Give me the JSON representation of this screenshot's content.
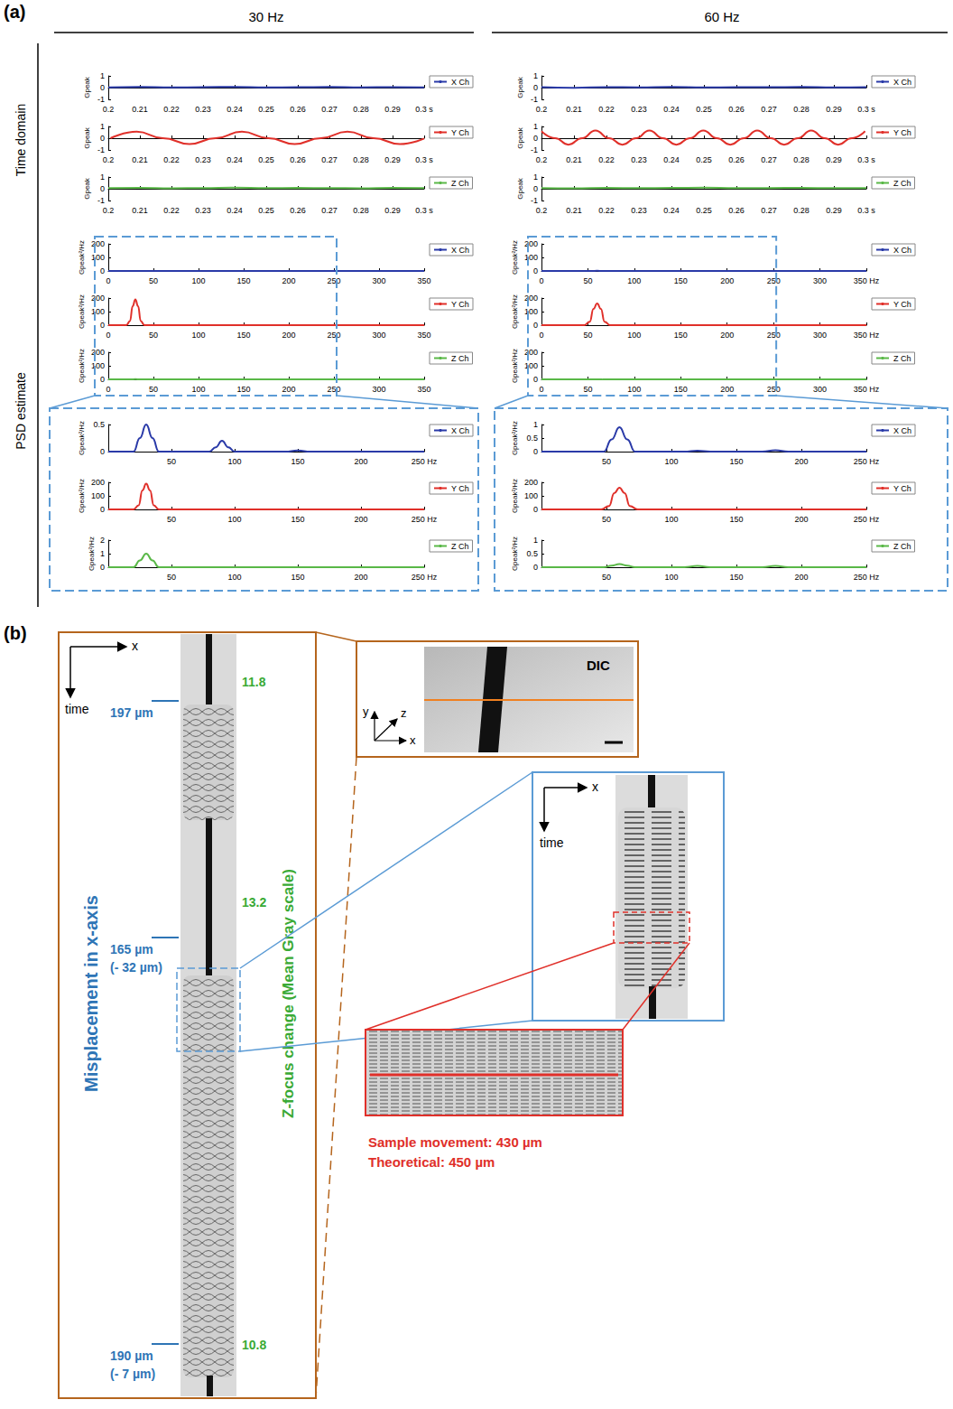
{
  "panel_a": {
    "label": "(a)",
    "column_titles": [
      "30 Hz",
      "60 Hz"
    ],
    "row_titles": [
      "Time domain",
      "PSD estimate"
    ]
  },
  "chart_data": [
    {
      "type": "line",
      "y_label": "Gpeak",
      "x": [
        0.2,
        0.21,
        0.22,
        0.23,
        0.24,
        0.25,
        0.26,
        0.27,
        0.28,
        0.29,
        0.3
      ],
      "series": [
        {
          "name": "X Ch",
          "color": "#2a3aa8",
          "values": [
            0.02,
            0.05,
            0.01,
            0.04,
            0.06,
            0.01,
            0.03,
            0.05,
            0.02,
            0.04,
            0.02
          ]
        }
      ],
      "xlim": [
        0.2,
        0.3
      ],
      "xticks": [
        0.2,
        0.21,
        0.22,
        0.23,
        0.24,
        0.25,
        0.26,
        0.27,
        0.28,
        0.29,
        {
          "value": 0.3,
          "label": "0.3 s"
        }
      ],
      "ylim": [
        -1,
        1
      ],
      "yticks": [
        -1,
        0,
        1
      ],
      "grid": false,
      "legend": "right"
    },
    {
      "type": "line",
      "y_label": "Gpeak",
      "x": [
        0.2007,
        0.209,
        0.2173,
        0.2257,
        0.234,
        0.2423,
        0.2507,
        0.259,
        0.2673,
        0.2757,
        0.284,
        0.2923,
        0.3
      ],
      "series": [
        {
          "name": "Y Ch",
          "color": "#e0302a",
          "values": [
            0,
            0.55,
            0,
            -0.5,
            0,
            0.55,
            0,
            -0.5,
            0,
            0.55,
            0,
            -0.5,
            -0.03
          ]
        }
      ],
      "xlim": [
        0.2,
        0.3
      ],
      "xticks": [
        0.2,
        0.21,
        0.22,
        0.23,
        0.24,
        0.25,
        0.26,
        0.27,
        0.28,
        0.29,
        {
          "value": 0.3,
          "label": "0.3 s"
        }
      ],
      "ylim": [
        -1,
        1
      ],
      "yticks": [
        -1,
        0,
        1
      ],
      "grid": false,
      "legend": "right"
    },
    {
      "type": "line",
      "y_label": "Gpeak",
      "x": [
        0.2,
        0.21,
        0.22,
        0.23,
        0.24,
        0.25,
        0.26,
        0.27,
        0.28,
        0.29,
        0.3
      ],
      "series": [
        {
          "name": "Z Ch",
          "color": "#5ab848",
          "values": [
            0.05,
            0.08,
            0.04,
            0.06,
            0.1,
            0.05,
            0.07,
            0.06,
            0.04,
            0.07,
            0.05
          ]
        }
      ],
      "xlim": [
        0.2,
        0.3
      ],
      "xticks": [
        0.2,
        0.21,
        0.22,
        0.23,
        0.24,
        0.25,
        0.26,
        0.27,
        0.28,
        0.29,
        {
          "value": 0.3,
          "label": "0.3 s"
        }
      ],
      "ylim": [
        -1,
        1
      ],
      "yticks": [
        -1,
        0,
        1
      ],
      "grid": false,
      "legend": "right"
    },
    {
      "type": "line",
      "y_label": "Gpeak²/Hz",
      "x": [
        0,
        20,
        25,
        30,
        35,
        40,
        80,
        85,
        90,
        95,
        100,
        140,
        150,
        160,
        350
      ],
      "series": [
        {
          "name": "X Ch",
          "color": "#2a3aa8",
          "values": [
            0,
            0,
            0.25,
            0.5,
            0.25,
            0,
            0,
            0.08,
            0.2,
            0.08,
            0,
            0,
            0.02,
            0,
            0
          ]
        }
      ],
      "xlim": [
        0,
        350
      ],
      "xticks": [
        0,
        50,
        100,
        150,
        200,
        250,
        300,
        350
      ],
      "ylim": [
        0,
        200
      ],
      "yticks": [
        0,
        100,
        200
      ],
      "grid": false,
      "legend": "right"
    },
    {
      "type": "line",
      "y_label": "Gpeak²/Hz",
      "x": [
        0,
        20,
        24,
        27,
        30,
        33,
        36,
        40,
        350
      ],
      "series": [
        {
          "name": "Y Ch",
          "color": "#e0302a",
          "values": [
            0,
            0,
            30,
            140,
            190,
            140,
            30,
            0,
            0
          ]
        }
      ],
      "xlim": [
        0,
        350
      ],
      "xticks": [
        0,
        50,
        100,
        150,
        200,
        250,
        300,
        350
      ],
      "ylim": [
        0,
        200
      ],
      "yticks": [
        0,
        100,
        200
      ],
      "grid": false,
      "legend": "right"
    },
    {
      "type": "line",
      "y_label": "Gpeak²/Hz",
      "x": [
        0,
        20,
        25,
        30,
        35,
        40,
        350
      ],
      "series": [
        {
          "name": "Z Ch",
          "color": "#5ab848",
          "values": [
            0,
            0,
            0.5,
            1.0,
            0.5,
            0,
            0
          ]
        }
      ],
      "xlim": [
        0,
        350
      ],
      "xticks": [
        0,
        50,
        100,
        150,
        200,
        250,
        300,
        350
      ],
      "ylim": [
        0,
        200
      ],
      "yticks": [
        0,
        100,
        200
      ],
      "grid": false,
      "legend": "right"
    },
    {
      "type": "line",
      "y_label": "Gpeak²/Hz",
      "x": [
        0,
        20,
        25,
        30,
        35,
        40,
        80,
        85,
        90,
        95,
        100,
        140,
        150,
        160,
        250
      ],
      "series": [
        {
          "name": "X Ch",
          "color": "#2a3aa8",
          "values": [
            0,
            0,
            0.25,
            0.5,
            0.25,
            0,
            0,
            0.08,
            0.2,
            0.08,
            0,
            0,
            0.02,
            0,
            0
          ]
        }
      ],
      "xlim": [
        0,
        250
      ],
      "xticks": [
        50,
        100,
        150,
        200,
        {
          "value": 250,
          "label": "250 Hz"
        }
      ],
      "ylim": [
        0,
        0.5
      ],
      "yticks": [
        0,
        0.5
      ],
      "grid": false,
      "legend": "right"
    },
    {
      "type": "line",
      "y_label": "Gpeak²/Hz",
      "x": [
        0,
        20,
        24,
        27,
        30,
        33,
        36,
        40,
        250
      ],
      "series": [
        {
          "name": "Y Ch",
          "color": "#e0302a",
          "values": [
            0,
            0,
            30,
            140,
            190,
            140,
            30,
            0,
            0
          ]
        }
      ],
      "xlim": [
        0,
        250
      ],
      "xticks": [
        50,
        100,
        150,
        200,
        {
          "value": 250,
          "label": "250 Hz"
        }
      ],
      "ylim": [
        0,
        200
      ],
      "yticks": [
        0,
        100,
        200
      ],
      "grid": false,
      "legend": "right"
    },
    {
      "type": "line",
      "y_label": "Gpeak²/Hz",
      "x": [
        0,
        20,
        25,
        30,
        35,
        40,
        250
      ],
      "series": [
        {
          "name": "Z Ch",
          "color": "#5ab848",
          "values": [
            0,
            0,
            0.5,
            1.0,
            0.5,
            0,
            0
          ]
        }
      ],
      "xlim": [
        0,
        250
      ],
      "xticks": [
        50,
        100,
        150,
        200,
        {
          "value": 250,
          "label": "250 Hz"
        }
      ],
      "ylim": [
        0,
        2
      ],
      "yticks": [
        0,
        1,
        2
      ],
      "grid": false,
      "legend": "right"
    },
    {
      "type": "line",
      "y_label": "Gpeak",
      "x": [
        0.2,
        0.21,
        0.22,
        0.23,
        0.24,
        0.25,
        0.26,
        0.27,
        0.28,
        0.29,
        0.3
      ],
      "series": [
        {
          "name": "X Ch",
          "color": "#2a3aa8",
          "values": [
            0.03,
            -0.02,
            0.04,
            0.02,
            0.05,
            0.01,
            0.04,
            0.03,
            0.05,
            0.02,
            0.04
          ]
        }
      ],
      "xlim": [
        0.2,
        0.3
      ],
      "xticks": [
        0.2,
        0.21,
        0.22,
        0.23,
        0.24,
        0.25,
        0.26,
        0.27,
        0.28,
        0.29,
        {
          "value": 0.3,
          "label": "0.3 s"
        }
      ],
      "ylim": [
        -1,
        1
      ],
      "yticks": [
        -1,
        0,
        1
      ],
      "grid": false,
      "legend": "right"
    },
    {
      "type": "line",
      "y_label": "Gpeak",
      "x": [
        0.2,
        0.2042,
        0.2083,
        0.2125,
        0.2166,
        0.2208,
        0.2249,
        0.2291,
        0.2332,
        0.2374,
        0.2415,
        0.2457,
        0.2498,
        0.254,
        0.2581,
        0.2623,
        0.2664,
        0.2706,
        0.2747,
        0.2789,
        0.283,
        0.2872,
        0.2913,
        0.2955,
        0.2996
      ],
      "series": [
        {
          "name": "Y Ch",
          "color": "#e0302a",
          "values": [
            0.6,
            0,
            -0.55,
            0,
            0.65,
            0,
            -0.55,
            0,
            0.65,
            0,
            -0.55,
            0,
            0.65,
            0,
            -0.55,
            0,
            0.65,
            0,
            -0.55,
            0,
            0.65,
            0,
            -0.55,
            0,
            0.6
          ]
        }
      ],
      "xlim": [
        0.2,
        0.3
      ],
      "xticks": [
        0.2,
        0.21,
        0.22,
        0.23,
        0.24,
        0.25,
        0.26,
        0.27,
        0.28,
        0.29,
        {
          "value": 0.3,
          "label": "0.3 s"
        }
      ],
      "ylim": [
        -1,
        1
      ],
      "yticks": [
        -1,
        0,
        1
      ],
      "grid": false,
      "legend": "right"
    },
    {
      "type": "line",
      "y_label": "Gpeak",
      "x": [
        0.2,
        0.21,
        0.22,
        0.23,
        0.24,
        0.25,
        0.26,
        0.27,
        0.28,
        0.29,
        0.3
      ],
      "series": [
        {
          "name": "Z Ch",
          "color": "#5ab848",
          "values": [
            0.06,
            0.04,
            0.08,
            0.05,
            0.07,
            0.09,
            0.05,
            0.06,
            0.08,
            0.05,
            0.06
          ]
        }
      ],
      "xlim": [
        0.2,
        0.3
      ],
      "xticks": [
        0.2,
        0.21,
        0.22,
        0.23,
        0.24,
        0.25,
        0.26,
        0.27,
        0.28,
        0.29,
        {
          "value": 0.3,
          "label": "0.3 s"
        }
      ],
      "ylim": [
        -1,
        1
      ],
      "yticks": [
        -1,
        0,
        1
      ],
      "grid": false,
      "legend": "right"
    },
    {
      "type": "line",
      "y_label": "Gpeak²/Hz",
      "x": [
        0,
        48,
        54,
        60,
        66,
        72,
        110,
        120,
        130,
        170,
        180,
        190,
        350
      ],
      "series": [
        {
          "name": "X Ch",
          "color": "#2a3aa8",
          "values": [
            0,
            0,
            0.45,
            0.9,
            0.45,
            0,
            0,
            0.03,
            0,
            0,
            0.05,
            0,
            0
          ]
        }
      ],
      "xlim": [
        0,
        350
      ],
      "xticks": [
        0,
        50,
        100,
        150,
        200,
        250,
        300,
        {
          "value": 350,
          "label": "350 Hz"
        }
      ],
      "ylim": [
        0,
        200
      ],
      "yticks": [
        0,
        100,
        200
      ],
      "grid": false,
      "legend": "right"
    },
    {
      "type": "line",
      "y_label": "Gpeak²/Hz",
      "x": [
        0,
        46,
        52,
        56,
        60,
        64,
        68,
        74,
        350
      ],
      "series": [
        {
          "name": "Y Ch",
          "color": "#e0302a",
          "values": [
            0,
            0,
            25,
            120,
            160,
            120,
            25,
            0,
            0
          ]
        }
      ],
      "xlim": [
        0,
        350
      ],
      "xticks": [
        0,
        50,
        100,
        150,
        200,
        250,
        300,
        {
          "value": 350,
          "label": "350 Hz"
        }
      ],
      "ylim": [
        0,
        200
      ],
      "yticks": [
        0,
        100,
        200
      ],
      "grid": false,
      "legend": "right"
    },
    {
      "type": "line",
      "y_label": "Gpeak²/Hz",
      "x": [
        0,
        48,
        54,
        60,
        66,
        72,
        110,
        120,
        130,
        170,
        180,
        190,
        350
      ],
      "series": [
        {
          "name": "Z Ch",
          "color": "#5ab848",
          "values": [
            0,
            0,
            0.06,
            0.12,
            0.06,
            0,
            0,
            0.05,
            0,
            0,
            0.05,
            0,
            0
          ]
        }
      ],
      "xlim": [
        0,
        350
      ],
      "xticks": [
        0,
        50,
        100,
        150,
        200,
        250,
        300,
        {
          "value": 350,
          "label": "350 Hz"
        }
      ],
      "ylim": [
        0,
        200
      ],
      "yticks": [
        0,
        100,
        200
      ],
      "grid": false,
      "legend": "right"
    },
    {
      "type": "line",
      "y_label": "Gpeak²/Hz",
      "x": [
        0,
        48,
        54,
        60,
        66,
        72,
        110,
        120,
        130,
        170,
        180,
        190,
        250
      ],
      "series": [
        {
          "name": "X Ch",
          "color": "#2a3aa8",
          "values": [
            0,
            0,
            0.45,
            0.9,
            0.45,
            0,
            0,
            0.03,
            0,
            0,
            0.05,
            0,
            0
          ]
        }
      ],
      "xlim": [
        0,
        250
      ],
      "xticks": [
        50,
        100,
        150,
        200,
        {
          "value": 250,
          "label": "250 Hz"
        }
      ],
      "ylim": [
        0,
        1
      ],
      "yticks": [
        0,
        0.5,
        1
      ],
      "grid": false,
      "legend": "right"
    },
    {
      "type": "line",
      "y_label": "Gpeak²/Hz",
      "x": [
        0,
        46,
        52,
        56,
        60,
        64,
        68,
        74,
        250
      ],
      "series": [
        {
          "name": "Y Ch",
          "color": "#e0302a",
          "values": [
            0,
            0,
            25,
            120,
            160,
            120,
            25,
            0,
            0
          ]
        }
      ],
      "xlim": [
        0,
        250
      ],
      "xticks": [
        50,
        100,
        150,
        200,
        {
          "value": 250,
          "label": "250 Hz"
        }
      ],
      "ylim": [
        0,
        200
      ],
      "yticks": [
        0,
        100,
        200
      ],
      "grid": false,
      "legend": "right"
    },
    {
      "type": "line",
      "y_label": "Gpeak²/Hz",
      "x": [
        0,
        48,
        54,
        60,
        66,
        72,
        110,
        120,
        130,
        170,
        180,
        190,
        250
      ],
      "series": [
        {
          "name": "Z Ch",
          "color": "#5ab848",
          "values": [
            0,
            0,
            0.06,
            0.12,
            0.06,
            0,
            0,
            0.05,
            0,
            0,
            0.05,
            0,
            0
          ]
        }
      ],
      "xlim": [
        0,
        250
      ],
      "xticks": [
        50,
        100,
        150,
        200,
        {
          "value": 250,
          "label": "250 Hz"
        }
      ],
      "ylim": [
        0,
        1
      ],
      "yticks": [
        0,
        0.5,
        1
      ],
      "grid": false,
      "legend": "right"
    }
  ],
  "panel_b": {
    "label": "(b)",
    "overview": {
      "axes": {
        "x": "x",
        "t": "time"
      },
      "axis_title": "Misplacement in x-axis",
      "focus_title": "Z-focus change (Mean Gray scale)",
      "positions": [
        {
          "text": "197 µm"
        },
        {
          "text": "165 µm",
          "change": "(- 32 µm)"
        },
        {
          "text": "190 µm",
          "change": "(- 7 µm)"
        }
      ],
      "gray_values": [
        "11.8",
        "13.2",
        "10.8"
      ]
    },
    "dic": {
      "label": "DIC",
      "axes": {
        "x": "x",
        "y": "y",
        "z": "z"
      }
    },
    "zoom": {
      "axes": {
        "x": "x",
        "t": "time"
      }
    },
    "detail": {
      "lines": [
        "Sample movement: 430 µm",
        "Theoretical: 450 µm"
      ]
    }
  }
}
